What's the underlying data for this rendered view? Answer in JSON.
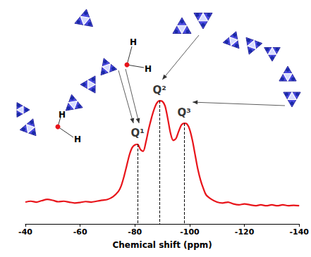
{
  "chart_data": {
    "type": "line",
    "xlabel": "Chemical shift (ppm)",
    "x": [
      -40,
      -42,
      -44,
      -46,
      -48,
      -50,
      -52,
      -54,
      -56,
      -58,
      -60,
      -62,
      -64,
      -66,
      -68,
      -70,
      -72,
      -74,
      -75,
      -76,
      -77,
      -78,
      -79,
      -80,
      -81,
      -82,
      -83,
      -84,
      -85,
      -86,
      -87,
      -88,
      -89,
      -90,
      -91,
      -92,
      -93,
      -94,
      -95,
      -96,
      -97,
      -98,
      -99,
      -100,
      -101,
      -102,
      -103,
      -104,
      -105,
      -106,
      -108,
      -110,
      -112,
      -114,
      -116,
      -118,
      -120,
      -122,
      -124,
      -126,
      -128,
      -130,
      -132,
      -134,
      -136,
      -138,
      -140
    ],
    "values": [
      12,
      12.5,
      12,
      12.8,
      13.5,
      13,
      12.2,
      12.5,
      12,
      11.5,
      11.8,
      12.3,
      12,
      12.5,
      13,
      13.5,
      15,
      18,
      21,
      26,
      32,
      38,
      42,
      43.5,
      43.8,
      41,
      40,
      45,
      52,
      58,
      63,
      66.5,
      67.8,
      67.5,
      65,
      58,
      50,
      46,
      47,
      51,
      54.5,
      55.4,
      55,
      52,
      46,
      38,
      30,
      24,
      19.5,
      16,
      13.5,
      12,
      11.5,
      12,
      11,
      10.5,
      11,
      10.5,
      10,
      10.5,
      10,
      10.5,
      10,
      10.5,
      10,
      10.2,
      10
    ],
    "color": "#e8141a",
    "line_style": "solid",
    "xlim": [
      -40,
      -140
    ],
    "xticks": [
      -40,
      -60,
      -80,
      -100,
      -120,
      -140
    ],
    "ylim": [
      0,
      100
    ],
    "tick_labels": "x",
    "grid": false,
    "annotations": [
      {
        "text": "Q¹",
        "x": -81,
        "y": 43.8
      },
      {
        "text": "Q²",
        "x": -89,
        "y": 67.8
      },
      {
        "text": "Q³",
        "x": -98,
        "y": 55.4
      }
    ],
    "structure_labels": [
      "H",
      "H",
      "H",
      "H"
    ]
  }
}
